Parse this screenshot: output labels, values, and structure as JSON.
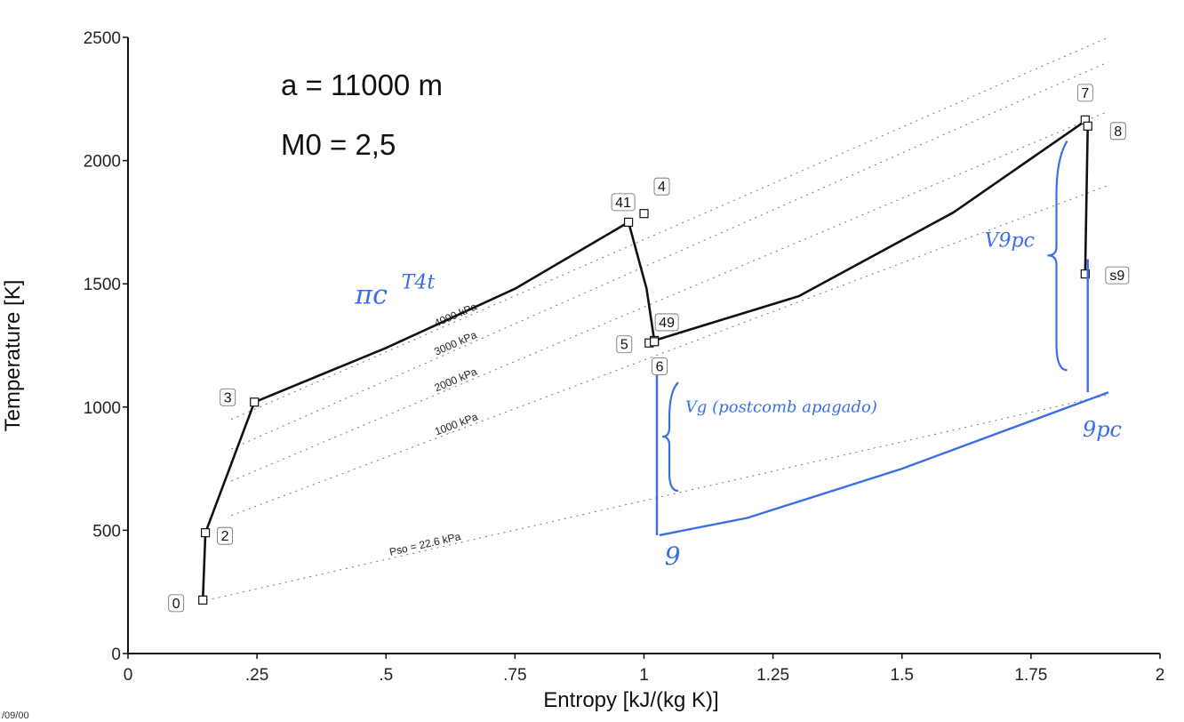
{
  "chart_data": {
    "type": "line",
    "title": "",
    "xlabel": "Entropy [kJ/(kg K)]",
    "ylabel": "Temperature [K]",
    "xlim": [
      0,
      2
    ],
    "ylim": [
      0,
      2500
    ],
    "x_ticks": [
      0,
      0.25,
      0.5,
      0.75,
      1,
      1.25,
      1.5,
      1.75,
      2
    ],
    "x_tick_labels": [
      "0",
      ".25",
      ".5",
      ".75",
      "1",
      "1.25",
      "1.5",
      "1.75",
      "2"
    ],
    "y_ticks": [
      0,
      500,
      1000,
      1500,
      2000,
      2500
    ],
    "y_tick_labels": [
      "0",
      "500",
      "1000",
      "1500",
      "2000",
      "2500"
    ],
    "grid": false,
    "inset_text": [
      "a = 11000 m",
      "M0 = 2,5"
    ],
    "states": [
      {
        "label": "0",
        "s": 0.145,
        "T": 217
      },
      {
        "label": "2",
        "s": 0.15,
        "T": 490
      },
      {
        "label": "3",
        "s": 0.245,
        "T": 1020
      },
      {
        "label": "41",
        "s": 0.97,
        "T": 1750
      },
      {
        "label": "4",
        "s": 1.0,
        "T": 1785
      },
      {
        "label": "49",
        "s": 1.02,
        "T": 1270
      },
      {
        "label": "5",
        "s": 1.01,
        "T": 1260
      },
      {
        "label": "6",
        "s": 1.02,
        "T": 1265
      },
      {
        "label": "7",
        "s": 1.855,
        "T": 2165
      },
      {
        "label": "8",
        "s": 1.86,
        "T": 2140
      },
      {
        "label": "s9",
        "s": 1.855,
        "T": 1540
      }
    ],
    "cycle_path": [
      [
        0.145,
        217
      ],
      [
        0.15,
        490
      ],
      [
        0.245,
        1020
      ],
      [
        0.5,
        1240
      ],
      [
        0.75,
        1480
      ],
      [
        0.97,
        1750
      ],
      [
        1.005,
        1480
      ],
      [
        1.02,
        1270
      ],
      [
        1.3,
        1450
      ],
      [
        1.6,
        1790
      ],
      [
        1.855,
        2160
      ],
      [
        1.86,
        2140
      ],
      [
        1.855,
        1540
      ]
    ],
    "isobars": [
      {
        "label": "Pso = 22.6 kPa",
        "points": [
          [
            0.14,
            210
          ],
          [
            1.9,
            1050
          ]
        ]
      },
      {
        "label": "1000 kPa",
        "points": [
          [
            0.2,
            560
          ],
          [
            1.9,
            1900
          ]
        ]
      },
      {
        "label": "2000 kPa",
        "points": [
          [
            0.2,
            700
          ],
          [
            1.9,
            2200
          ]
        ]
      },
      {
        "label": "3000 kPa",
        "points": [
          [
            0.2,
            830
          ],
          [
            1.9,
            2400
          ]
        ]
      },
      {
        "label": "4000 kPa",
        "points": [
          [
            0.2,
            950
          ],
          [
            1.9,
            2500
          ]
        ]
      }
    ],
    "annotations": [
      {
        "text": "πc",
        "s": 0.44,
        "T": 1420,
        "size": 30
      },
      {
        "text": "T4t",
        "s": 0.53,
        "T": 1480,
        "size": 22
      },
      {
        "text": "Vg (postcomb apagado)",
        "s": 1.08,
        "T": 980,
        "size": 18
      },
      {
        "text": "V9pc",
        "s": 1.66,
        "T": 1650,
        "size": 22
      },
      {
        "text": "9pc",
        "s": 1.85,
        "T": 880,
        "size": 24
      },
      {
        "text": "9",
        "s": 1.04,
        "T": 360,
        "size": 28
      }
    ],
    "handwritten_marks": {
      "left_brace_s": 1.025,
      "left_brace_T": [
        480,
        1130
      ],
      "line_9_to_9pc": [
        [
          1.03,
          480
        ],
        [
          1.2,
          550
        ],
        [
          1.5,
          750
        ],
        [
          1.9,
          1060
        ]
      ],
      "right_line_s": 1.86,
      "right_line_T": [
        1060,
        1600
      ],
      "right_brace_s": 1.82,
      "right_brace_T": [
        1150,
        2080
      ]
    },
    "colors": {
      "cycle": "#111111",
      "isobar": "#777777",
      "hand": "#3a6ee8"
    }
  },
  "footer": {
    "date": "/09/00"
  }
}
